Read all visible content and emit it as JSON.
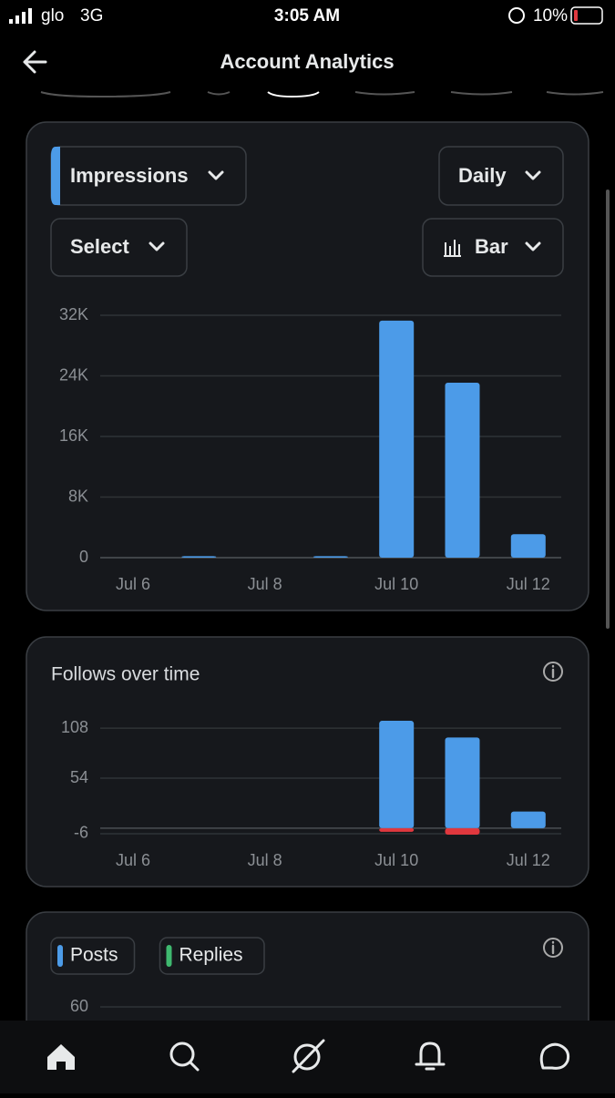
{
  "status_bar": {
    "carrier": "glo",
    "network": "3G",
    "time": "3:05 AM",
    "battery": "10%"
  },
  "header": {
    "title": "Account Analytics"
  },
  "controls": {
    "metric": "Impressions",
    "period": "Daily",
    "compare": "Select",
    "chart_style": "Bar"
  },
  "chart_data": [
    {
      "type": "bar",
      "categories": [
        "Jul 6",
        null,
        "Jul 8",
        null,
        "Jul 10",
        null,
        "Jul 12"
      ],
      "series": [
        {
          "color": "#4c9be8",
          "values": [
            0,
            200,
            0,
            200,
            31300,
            23100,
            3100
          ]
        }
      ],
      "ylim": [
        0,
        32000
      ],
      "yticks": [
        {
          "value": 0,
          "label": "0"
        },
        {
          "value": 8000,
          "label": "8K"
        },
        {
          "value": 16000,
          "label": "16K"
        },
        {
          "value": 24000,
          "label": "24K"
        },
        {
          "value": 32000,
          "label": "32K"
        }
      ],
      "grid": true
    },
    {
      "type": "bar",
      "title": "Follows over time",
      "categories": [
        "Jul 6",
        null,
        "Jul 8",
        null,
        "Jul 10",
        null,
        "Jul 12"
      ],
      "series": [
        {
          "color": "#4c9be8",
          "values": [
            0,
            0,
            0,
            0,
            116,
            98,
            18
          ]
        },
        {
          "color": "#e0383e",
          "values": [
            0,
            0,
            0,
            0,
            -4,
            -7,
            0
          ]
        }
      ],
      "ylim": [
        -10,
        120
      ],
      "yticks": [
        -6,
        54,
        108
      ],
      "grid": true
    },
    {
      "type": "bar",
      "series": [
        {
          "name": "Posts",
          "color": "#4c9be8"
        },
        {
          "name": "Replies",
          "color": "#3fb96f"
        }
      ],
      "yticks": [
        60
      ],
      "grid": true
    }
  ]
}
